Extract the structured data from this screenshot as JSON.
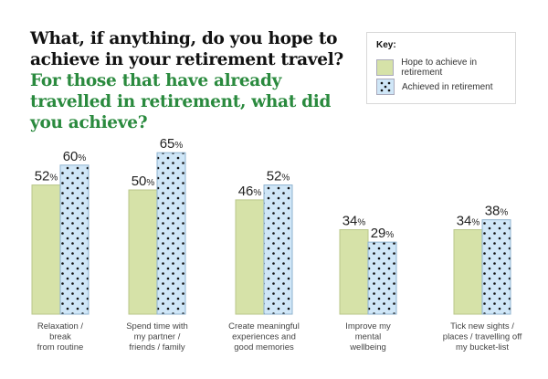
{
  "chart_data": {
    "type": "bar",
    "title": "What, if anything, do you hope to achieve in your retirement travel?",
    "subtitle": "For those that have already travelled in retirement, what did you achieve?",
    "legend_title": "Key:",
    "legend_position": "top-right",
    "categories": [
      [
        "Relaxation /",
        "break",
        "from routine"
      ],
      [
        "Spend time with",
        "my partner /",
        "friends / family"
      ],
      [
        "Create meaningful",
        "experiences and",
        "good memories"
      ],
      [
        "Improve my",
        "mental",
        "wellbeing"
      ],
      [
        "Tick new sights /",
        "places / travelling off",
        "my bucket-list"
      ]
    ],
    "series": [
      {
        "name": "Hope to achieve in retirement",
        "values": [
          52,
          50,
          46,
          34,
          34
        ],
        "color": "#d6e2a8",
        "pattern": "solid"
      },
      {
        "name": "Achieved in retirement",
        "values": [
          60,
          65,
          52,
          29,
          38
        ],
        "color": "#cfe6f7",
        "pattern": "dots"
      }
    ],
    "unit": "%",
    "ylim": [
      0,
      70
    ],
    "grid": false
  }
}
